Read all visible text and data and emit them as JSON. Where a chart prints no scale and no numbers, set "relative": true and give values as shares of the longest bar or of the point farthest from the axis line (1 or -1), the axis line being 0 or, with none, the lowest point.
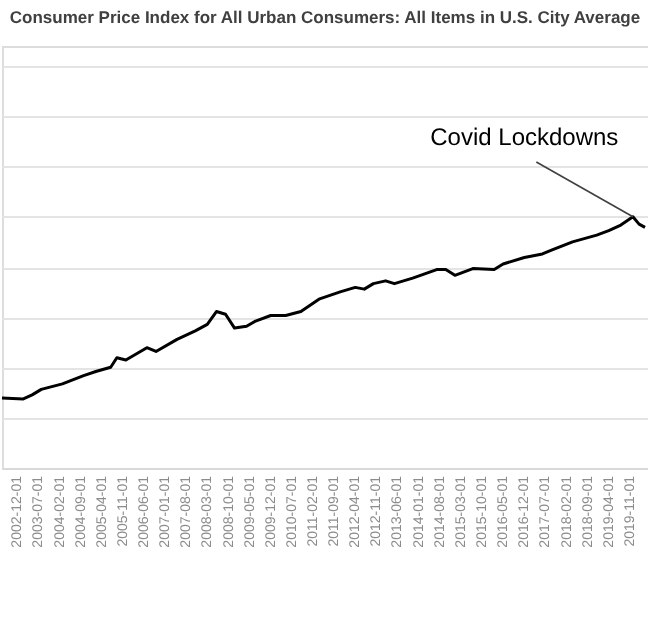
{
  "chart_data": {
    "type": "line",
    "title": "Consumer Price Index for All Urban Consumers: All Items in U.S. City Average",
    "relative": true,
    "grid": "y",
    "legend": false,
    "annotations": [
      {
        "text": "Covid Lockdowns",
        "x": "2019-12",
        "y": 1
      }
    ],
    "xlim": [
      "2002-07",
      "2020-05"
    ],
    "xticks": [
      "2002-12-01",
      "2003-07-01",
      "2004-02-01",
      "2004-09-01",
      "2005-04-01",
      "2005-11-01",
      "2006-06-01",
      "2007-01-01",
      "2007-08-01",
      "2008-03-01",
      "2008-10-01",
      "2009-05-01",
      "2009-12-01",
      "2010-07-01",
      "2011-02-01",
      "2011-09-01",
      "2012-04-01",
      "2012-11-01",
      "2013-06-01",
      "2014-01-01",
      "2014-08-01",
      "2015-03-01",
      "2015-10-01",
      "2016-05-01",
      "2016-12-01",
      "2017-07-01",
      "2018-02-01",
      "2018-09-01",
      "2019-04-01",
      "2019-11-01"
    ],
    "series": [
      {
        "color": "#000000",
        "x": [
          "2002-07",
          "2003-02",
          "2003-05",
          "2003-08",
          "2004-03",
          "2004-10",
          "2005-02",
          "2005-07",
          "2005-09",
          "2005-12",
          "2006-07",
          "2006-10",
          "2007-05",
          "2007-11",
          "2008-03",
          "2008-06",
          "2008-09",
          "2008-12",
          "2009-04",
          "2009-07",
          "2009-12",
          "2010-05",
          "2010-10",
          "2011-04",
          "2011-11",
          "2012-04",
          "2012-07",
          "2012-10",
          "2013-02",
          "2013-05",
          "2013-11",
          "2014-07",
          "2014-10",
          "2015-01",
          "2015-07",
          "2016-02",
          "2016-05",
          "2016-12",
          "2017-06",
          "2017-09",
          "2018-04",
          "2018-12",
          "2019-04",
          "2019-08",
          "2019-12",
          "2020-02",
          "2020-04"
        ],
        "values": [
          0.279,
          0.275,
          0.291,
          0.313,
          0.335,
          0.368,
          0.384,
          0.401,
          0.439,
          0.43,
          0.479,
          0.464,
          0.512,
          0.546,
          0.572,
          0.623,
          0.612,
          0.557,
          0.564,
          0.585,
          0.607,
          0.607,
          0.623,
          0.672,
          0.701,
          0.719,
          0.712,
          0.734,
          0.745,
          0.734,
          0.756,
          0.79,
          0.79,
          0.767,
          0.794,
          0.79,
          0.812,
          0.838,
          0.852,
          0.867,
          0.9,
          0.927,
          0.945,
          0.967,
          1,
          0.971,
          0.958
        ]
      }
    ]
  }
}
